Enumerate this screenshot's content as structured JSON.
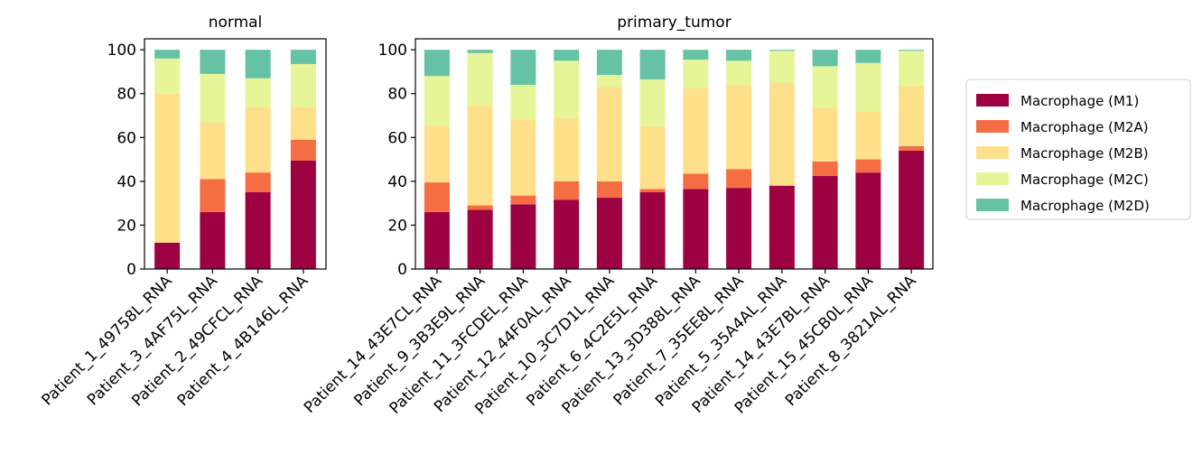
{
  "chart_data": {
    "type": "bar",
    "stacked": true,
    "ylim": [
      0,
      105
    ],
    "yticks": [
      0,
      20,
      40,
      60,
      80,
      100
    ],
    "legend_position": "right",
    "series_names": [
      "Macrophage (M1)",
      "Macrophage (M2A)",
      "Macrophage (M2B)",
      "Macrophage (M2C)",
      "Macrophage (M2D)"
    ],
    "colors": [
      "#9e0142",
      "#f46d43",
      "#fee08b",
      "#e6f598",
      "#66c2a5"
    ],
    "panels": [
      {
        "title": "normal",
        "categories": [
          "Patient_1_49758L_RNA",
          "Patient_3_4AF75L_RNA",
          "Patient_2_49CFCL_RNA",
          "Patient_4_4B146L_RNA"
        ],
        "series": [
          {
            "name": "Macrophage (M1)",
            "values": [
              12,
              26,
              35,
              49.5
            ]
          },
          {
            "name": "Macrophage (M2A)",
            "values": [
              0,
              15,
              9,
              9.5
            ]
          },
          {
            "name": "Macrophage (M2B)",
            "values": [
              68,
              26,
              30,
              15
            ]
          },
          {
            "name": "Macrophage (M2C)",
            "values": [
              16,
              22,
              13,
              19.5
            ]
          },
          {
            "name": "Macrophage (M2D)",
            "values": [
              4,
              11,
              13,
              6.5
            ]
          }
        ]
      },
      {
        "title": "primary_tumor",
        "categories": [
          "Patient_14_43E7CL_RNA",
          "Patient_9_3B3E9L_RNA",
          "Patient_11_3FCDEL_RNA",
          "Patient_12_44F0AL_RNA",
          "Patient_10_3C7D1L_RNA",
          "Patient_6_4C2E5L_RNA",
          "Patient_13_3D388L_RNA",
          "Patient_7_35EE8L_RNA",
          "Patient_5_35A4AL_RNA",
          "Patient_14_43E7BL_RNA",
          "Patient_15_45CB0L_RNA",
          "Patient_8_3821AL_RNA"
        ],
        "series": [
          {
            "name": "Macrophage (M1)",
            "values": [
              26,
              27,
              29.5,
              31.5,
              32.5,
              35,
              36.5,
              37,
              38,
              42.5,
              44,
              54
            ]
          },
          {
            "name": "Macrophage (M2A)",
            "values": [
              13.5,
              2,
              4,
              8.5,
              7.5,
              1.5,
              7,
              8.5,
              0,
              6.5,
              6,
              2
            ]
          },
          {
            "name": "Macrophage (M2B)",
            "values": [
              26,
              45.5,
              34.5,
              29,
              43,
              28.5,
              39,
              38.5,
              47,
              24.5,
              22,
              27.5
            ]
          },
          {
            "name": "Macrophage (M2C)",
            "values": [
              22.5,
              24,
              16,
              26,
              5.5,
              21.5,
              13,
              11,
              14.5,
              19,
              22,
              16
            ]
          },
          {
            "name": "Macrophage (M2D)",
            "values": [
              12,
              1.5,
              16,
              5,
              11.5,
              13.5,
              4.5,
              5,
              0.5,
              7.5,
              6,
              0.5
            ]
          }
        ]
      }
    ]
  }
}
